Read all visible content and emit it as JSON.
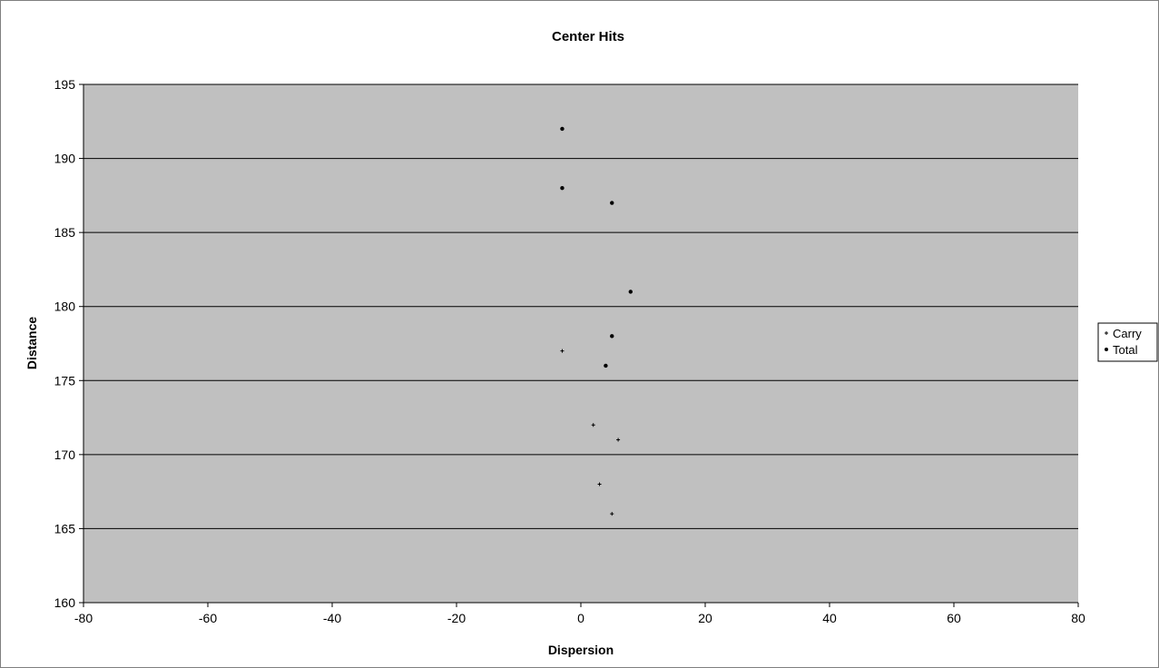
{
  "chart_data": {
    "type": "scatter",
    "title": "Center Hits",
    "xlabel": "Dispersion",
    "ylabel": "Distance",
    "xlim": [
      -80,
      80
    ],
    "ylim": [
      160,
      195
    ],
    "x_ticks": [
      "-80",
      "-60",
      "-40",
      "-20",
      "0",
      "20",
      "40",
      "60",
      "80"
    ],
    "y_ticks": [
      "160",
      "165",
      "170",
      "175",
      "180",
      "185",
      "190",
      "195"
    ],
    "grid": "horizontal",
    "legend_position": "right",
    "plot_background": "#c0c0c0",
    "series": [
      {
        "name": "Carry",
        "marker": "plus",
        "points": [
          [
            -3,
            177
          ],
          [
            2,
            172
          ],
          [
            6,
            171
          ],
          [
            3,
            168
          ],
          [
            5,
            166
          ]
        ]
      },
      {
        "name": "Total",
        "marker": "dot",
        "points": [
          [
            -3,
            192
          ],
          [
            -3,
            188
          ],
          [
            5,
            187
          ],
          [
            8,
            181
          ],
          [
            5,
            178
          ],
          [
            4,
            176
          ]
        ]
      }
    ]
  }
}
